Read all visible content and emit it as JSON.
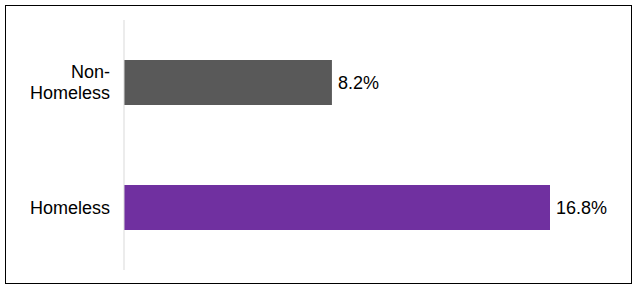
{
  "chart_data": {
    "type": "bar",
    "orientation": "horizontal",
    "categories": [
      "Non-Homeless",
      "Homeless"
    ],
    "values": [
      8.2,
      16.8
    ],
    "value_labels": [
      "8.2%",
      "16.8%"
    ],
    "colors": [
      "#595959",
      "#7030a0"
    ],
    "data_labels": true,
    "tick_labels": "y",
    "grid": false
  }
}
